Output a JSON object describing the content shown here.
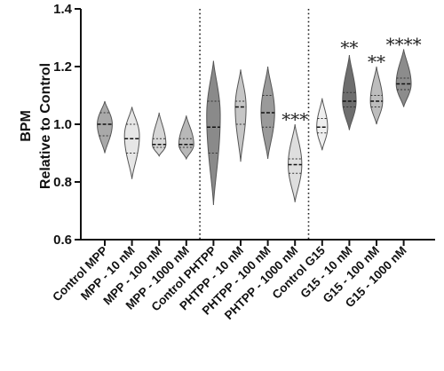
{
  "chart_data": {
    "type": "violin",
    "title": "",
    "ylabel": [
      "BPM",
      "Relative to Control"
    ],
    "xlabel": "",
    "ylim": [
      0.6,
      1.4
    ],
    "yticks": [
      0.6,
      0.8,
      1.0,
      1.2,
      1.4
    ],
    "ytick_labels": [
      "0.6",
      "0.8",
      "1.0",
      "1.2",
      "1.4"
    ],
    "grid": false,
    "categories": [
      "Control MPP",
      "MPP - 10 nM",
      "MPP - 100 nM",
      "MPP - 1000 nM",
      "Control PHTPP",
      "PHTPP - 10 nM",
      "PHTPP - 100 nM",
      "PHTPP - 1000 nM",
      "Control G15",
      "G15 - 10 nM",
      "G15 - 100 nM",
      "G15 - 1000 nM"
    ],
    "group_separators_after": [
      3,
      7
    ],
    "violins": [
      {
        "min": 0.9,
        "max": 1.08,
        "q1": 0.96,
        "median": 1.0,
        "q3": 1.04,
        "mode": 1.0,
        "width": 0.55,
        "color": "#a9a9a9"
      },
      {
        "min": 0.81,
        "max": 1.06,
        "q1": 0.9,
        "median": 0.95,
        "q3": 1.0,
        "mode": 0.96,
        "width": 0.55,
        "color": "#e6e6e6"
      },
      {
        "min": 0.89,
        "max": 1.04,
        "q1": 0.92,
        "median": 0.93,
        "q3": 0.95,
        "mode": 0.93,
        "width": 0.5,
        "color": "#d6d6d6"
      },
      {
        "min": 0.88,
        "max": 1.03,
        "q1": 0.92,
        "median": 0.93,
        "q3": 0.95,
        "mode": 0.93,
        "width": 0.55,
        "color": "#b8b8b8"
      },
      {
        "min": 0.72,
        "max": 1.22,
        "q1": 0.9,
        "median": 0.99,
        "q3": 1.08,
        "mode": 1.03,
        "width": 0.5,
        "color": "#8a8a8a"
      },
      {
        "min": 0.87,
        "max": 1.19,
        "q1": 1.0,
        "median": 1.06,
        "q3": 1.08,
        "mode": 1.06,
        "width": 0.4,
        "color": "#c6c6c6"
      },
      {
        "min": 0.88,
        "max": 1.2,
        "q1": 0.99,
        "median": 1.04,
        "q3": 1.1,
        "mode": 1.04,
        "width": 0.5,
        "color": "#9a9a9a"
      },
      {
        "min": 0.73,
        "max": 1.0,
        "q1": 0.83,
        "median": 0.86,
        "q3": 0.88,
        "mode": 0.86,
        "width": 0.5,
        "color": "#dedede"
      },
      {
        "min": 0.91,
        "max": 1.09,
        "q1": 0.97,
        "median": 0.99,
        "q3": 1.02,
        "mode": 0.99,
        "width": 0.4,
        "color": "#efefef"
      },
      {
        "min": 0.98,
        "max": 1.24,
        "q1": 1.06,
        "median": 1.08,
        "q3": 1.11,
        "mode": 1.08,
        "width": 0.5,
        "color": "#6e6e6e"
      },
      {
        "min": 1.0,
        "max": 1.2,
        "q1": 1.06,
        "median": 1.08,
        "q3": 1.1,
        "mode": 1.08,
        "width": 0.45,
        "color": "#bdbdbd"
      },
      {
        "min": 1.06,
        "max": 1.26,
        "q1": 1.12,
        "median": 1.14,
        "q3": 1.16,
        "mode": 1.14,
        "width": 0.55,
        "color": "#8c8c8c"
      }
    ],
    "annotations": [
      {
        "category_index": 7,
        "text": "***",
        "y": 1.02
      },
      {
        "category_index": 9,
        "text": "**",
        "y": 1.27
      },
      {
        "category_index": 10,
        "text": "**",
        "y": 1.22
      },
      {
        "category_index": 11,
        "text": "****",
        "y": 1.28
      }
    ]
  }
}
